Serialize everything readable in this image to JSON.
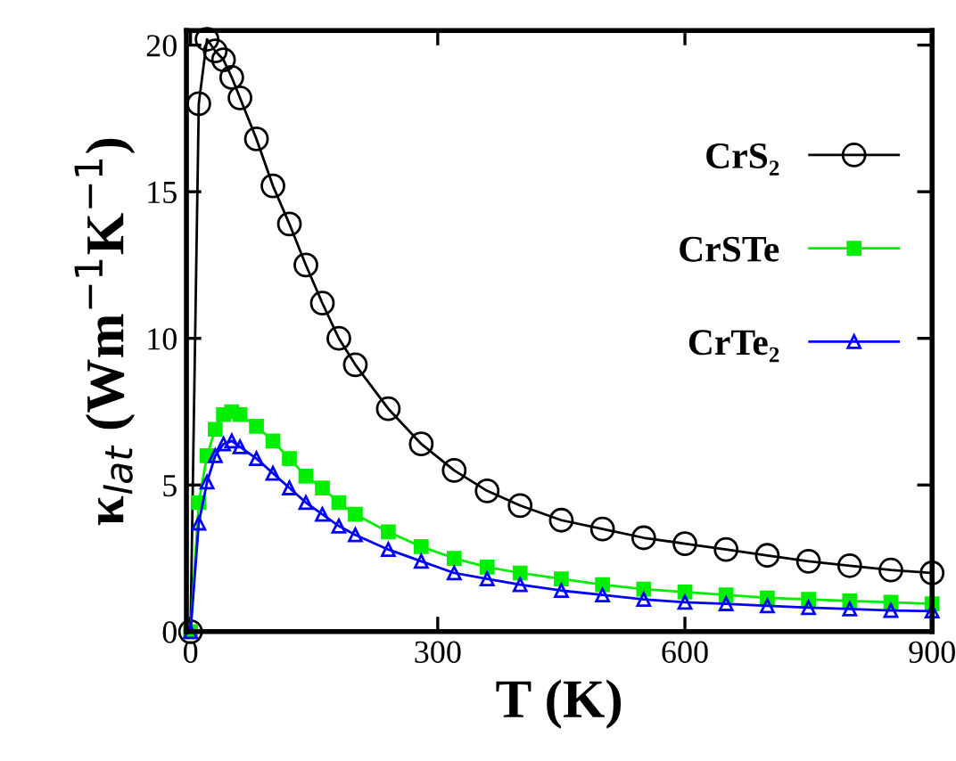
{
  "chart_data": {
    "type": "line",
    "xlabel": "T (K)",
    "ylabel": "κ$_{lat}$ (Wm$^{−1}$K$^{−1}$)",
    "x": [
      0,
      10,
      20,
      30,
      40,
      50,
      60,
      80,
      100,
      120,
      140,
      160,
      180,
      200,
      240,
      280,
      320,
      360,
      400,
      450,
      500,
      550,
      600,
      650,
      700,
      750,
      800,
      850,
      900
    ],
    "series": [
      {
        "name": "CrS₂",
        "color": "#000000",
        "marker": "circle",
        "values": [
          0,
          18,
          20.2,
          19.8,
          19.5,
          18.9,
          18.2,
          16.8,
          15.2,
          13.9,
          12.5,
          11.2,
          10.0,
          9.1,
          7.6,
          6.4,
          5.5,
          4.8,
          4.3,
          3.8,
          3.5,
          3.2,
          3.0,
          2.8,
          2.6,
          2.4,
          2.25,
          2.1,
          2.0
        ]
      },
      {
        "name": "CrSTe",
        "color": "#00ee00",
        "marker": "square",
        "values": [
          0,
          4.4,
          6.0,
          6.9,
          7.4,
          7.5,
          7.4,
          7.0,
          6.5,
          5.9,
          5.3,
          4.9,
          4.4,
          4.0,
          3.4,
          2.9,
          2.5,
          2.2,
          2.0,
          1.8,
          1.6,
          1.45,
          1.35,
          1.25,
          1.15,
          1.1,
          1.05,
          1.0,
          0.95
        ]
      },
      {
        "name": "CrTe₂",
        "color": "#0000ff",
        "marker": "triangle",
        "values": [
          0,
          3.7,
          5.1,
          6.0,
          6.4,
          6.5,
          6.3,
          5.9,
          5.4,
          4.9,
          4.4,
          4.0,
          3.6,
          3.3,
          2.8,
          2.4,
          2.0,
          1.8,
          1.6,
          1.4,
          1.25,
          1.1,
          1.0,
          0.95,
          0.88,
          0.82,
          0.77,
          0.72,
          0.7
        ]
      }
    ],
    "xlim": [
      -5,
      900
    ],
    "ylim": [
      0,
      20.5
    ],
    "xticks": [
      0,
      300,
      600,
      900
    ],
    "yticks": [
      0,
      5,
      10,
      15,
      20
    ],
    "grid": false,
    "legend": "top right",
    "line_style": "solid"
  }
}
